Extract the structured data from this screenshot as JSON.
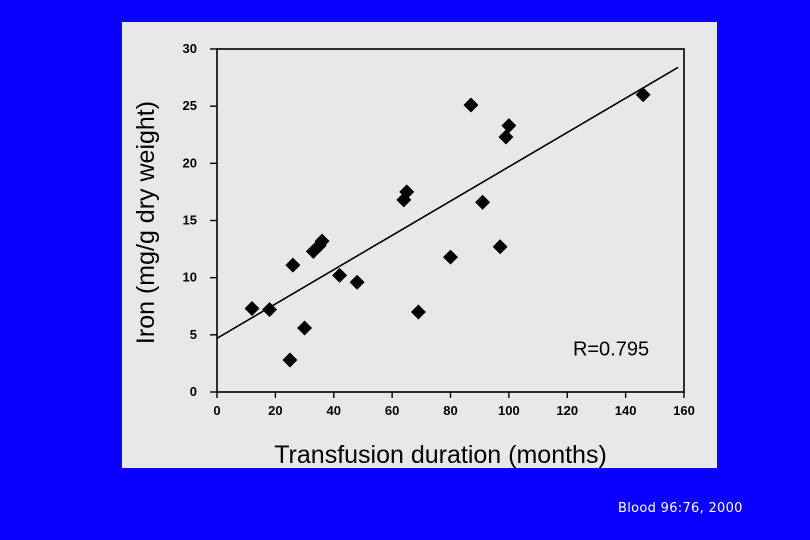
{
  "slide": {
    "citation": "Blood 96:76, 2000",
    "background_color": "#0a00ff"
  },
  "chart_data": {
    "type": "scatter",
    "title": "",
    "xlabel": "Transfusion duration (months)",
    "ylabel": "Iron (mg/g dry weight)",
    "xlim": [
      0,
      160
    ],
    "ylim": [
      0,
      30
    ],
    "xticks": [
      "0",
      "20",
      "40",
      "60",
      "80",
      "100",
      "120",
      "140",
      "160"
    ],
    "yticks": [
      "0",
      "5",
      "10",
      "15",
      "20",
      "25",
      "30"
    ],
    "grid": false,
    "annotation": "R=0.795",
    "marker": "diamond",
    "marker_color": "#000000",
    "points": [
      {
        "x": 12,
        "y": 7.3
      },
      {
        "x": 18,
        "y": 7.2
      },
      {
        "x": 25,
        "y": 2.8
      },
      {
        "x": 26,
        "y": 11.1
      },
      {
        "x": 30,
        "y": 5.6
      },
      {
        "x": 33,
        "y": 12.3
      },
      {
        "x": 35,
        "y": 12.8
      },
      {
        "x": 36,
        "y": 13.2
      },
      {
        "x": 42,
        "y": 10.2
      },
      {
        "x": 48,
        "y": 9.6
      },
      {
        "x": 64,
        "y": 16.8
      },
      {
        "x": 65,
        "y": 17.5
      },
      {
        "x": 69,
        "y": 7.0
      },
      {
        "x": 80,
        "y": 11.8
      },
      {
        "x": 87,
        "y": 25.1
      },
      {
        "x": 91,
        "y": 16.6
      },
      {
        "x": 97,
        "y": 12.7
      },
      {
        "x": 99,
        "y": 22.3
      },
      {
        "x": 100,
        "y": 23.3
      },
      {
        "x": 146,
        "y": 26.0
      }
    ],
    "trendline": {
      "x": [
        0,
        158
      ],
      "y": [
        4.7,
        28.4
      ]
    }
  }
}
